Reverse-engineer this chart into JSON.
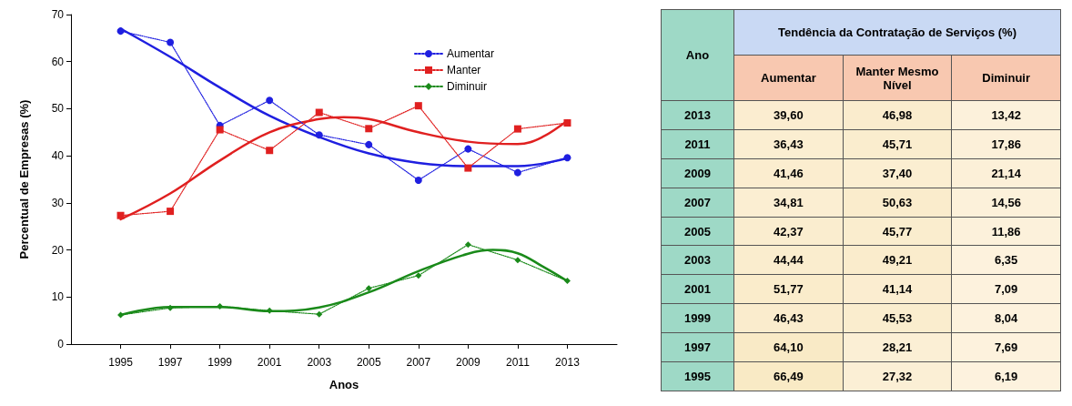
{
  "chart_data": [
    {
      "type": "line",
      "xlabel": "Anos",
      "ylabel": "Percentual de Empresas (%)",
      "x": [
        1995,
        1997,
        1999,
        2001,
        2003,
        2005,
        2007,
        2009,
        2011,
        2013
      ],
      "xlim": [
        1993,
        2015
      ],
      "xticks": [
        1995,
        1997,
        1999,
        2001,
        2003,
        2005,
        2007,
        2009,
        2011,
        2013
      ],
      "ylim": [
        0,
        70
      ],
      "yticks": [
        0,
        10,
        20,
        30,
        40,
        50,
        60,
        70
      ],
      "grid": false,
      "legend": "top right",
      "series": [
        {
          "name": "Aumentar",
          "color": "#1f1fe0",
          "marker": "circle",
          "line_style": "dotted",
          "values": [
            66.49,
            64.1,
            46.43,
            51.77,
            44.44,
            42.37,
            34.81,
            41.46,
            36.43,
            39.6
          ]
        },
        {
          "name": "Manter",
          "color": "#e02020",
          "marker": "square",
          "line_style": "dotted",
          "values": [
            27.32,
            28.21,
            45.53,
            41.14,
            49.21,
            45.77,
            50.63,
            37.4,
            45.71,
            46.98
          ]
        },
        {
          "name": "Diminuir",
          "color": "#1a8a1a",
          "marker": "diamond",
          "line_style": "dotted",
          "values": [
            6.19,
            7.69,
            8.04,
            7.09,
            6.35,
            11.86,
            14.56,
            21.14,
            17.86,
            13.42
          ]
        },
        {
          "type": "line",
          "color": "#1f1fe0",
          "marker": "none",
          "line_style": "solid",
          "x": [
            1995,
            1997,
            1999,
            2001,
            2003,
            2005,
            2007,
            2009,
            2011,
            2013
          ],
          "values": [
            67,
            61,
            54.5,
            48.5,
            44,
            40.5,
            38.5,
            37.8,
            37.8,
            39.5
          ]
        },
        {
          "type": "line",
          "color": "#e02020",
          "marker": "none",
          "line_style": "solid",
          "x": [
            1995,
            1997,
            1999,
            2001,
            2003,
            2004,
            2005,
            2007,
            2009,
            2011,
            2012,
            2013
          ],
          "values": [
            26.5,
            32,
            39,
            45,
            47.8,
            48.2,
            47.8,
            45,
            43,
            42.5,
            44,
            47.5
          ]
        },
        {
          "type": "line",
          "color": "#1a8a1a",
          "marker": "none",
          "line_style": "solid",
          "x": [
            1995,
            1997,
            1999,
            2001,
            2003,
            2005,
            2007,
            2009,
            2010,
            2011,
            2012,
            2013
          ],
          "values": [
            6.2,
            7.9,
            7.9,
            7,
            7.8,
            11,
            15.5,
            19.2,
            20,
            19.3,
            16.5,
            13.4
          ]
        }
      ]
    },
    {
      "type": "heatmap",
      "title": "Tendência da Contratação de Serviços (%)",
      "ylabel": "Ano",
      "categories": [
        "Aumentar",
        "Manter Mesmo Nível",
        "Diminuir"
      ],
      "y_categories": [
        "2013",
        "2011",
        "2009",
        "2007",
        "2005",
        "2003",
        "2001",
        "1999",
        "1997",
        "1995"
      ],
      "cells": [
        [
          39.6,
          46.98,
          13.42
        ],
        [
          36.43,
          45.71,
          17.86
        ],
        [
          41.46,
          37.4,
          21.14
        ],
        [
          34.81,
          50.63,
          14.56
        ],
        [
          42.37,
          45.77,
          11.86
        ],
        [
          44.44,
          49.21,
          6.35
        ],
        [
          51.77,
          41.14,
          7.09
        ],
        [
          46.43,
          45.53,
          8.04
        ],
        [
          64.1,
          28.21,
          7.69
        ],
        [
          66.49,
          27.32,
          6.19
        ]
      ],
      "cell_labels": [
        [
          "39,60",
          "46,98",
          "13,42"
        ],
        [
          "36,43",
          "45,71",
          "17,86"
        ],
        [
          "41,46",
          "37,40",
          "21,14"
        ],
        [
          "34,81",
          "50,63",
          "14,56"
        ],
        [
          "42,37",
          "45,77",
          "11,86"
        ],
        [
          "44,44",
          "49,21",
          "6,35"
        ],
        [
          "51,77",
          "41,14",
          "7,09"
        ],
        [
          "46,43",
          "45,53",
          "8,04"
        ],
        [
          "64,10",
          "28,21",
          "7,69"
        ],
        [
          "66,49",
          "27,32",
          "6,19"
        ]
      ]
    }
  ]
}
